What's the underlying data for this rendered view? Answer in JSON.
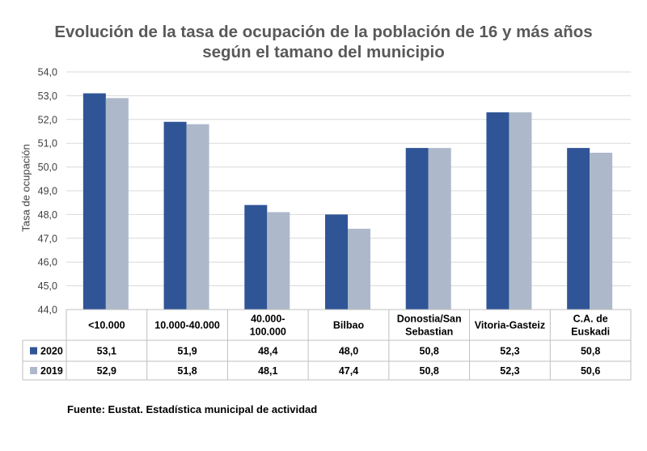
{
  "chart_data": {
    "type": "bar",
    "title": "Evolución de la tasa de ocupación de la población de 16 y más años",
    "subtitle": "según el tamano del municipio",
    "xlabel": "",
    "ylabel": "Tasa de ocupación",
    "ylim": [
      44,
      54
    ],
    "yticks": [
      "44,0",
      "45,0",
      "46,0",
      "47,0",
      "48,0",
      "49,0",
      "50,0",
      "51,0",
      "52,0",
      "53,0",
      "54,0"
    ],
    "categories": [
      [
        "<10.000"
      ],
      [
        "10.000-40.000"
      ],
      [
        "40.000-",
        "100.000"
      ],
      [
        "Bilbao"
      ],
      [
        "Donostia/San",
        "Sebastian"
      ],
      [
        "Vitoria-Gasteiz"
      ],
      [
        "C.A. de",
        "Euskadi"
      ]
    ],
    "series": [
      {
        "name": "2020",
        "color": "#2f5597",
        "values": [
          53.1,
          51.9,
          48.4,
          48.0,
          50.8,
          52.3,
          50.8
        ],
        "labels": [
          "53,1",
          "51,9",
          "48,4",
          "48,0",
          "50,8",
          "52,3",
          "50,8"
        ]
      },
      {
        "name": "2019",
        "color": "#adb9ca",
        "values": [
          52.9,
          51.8,
          48.1,
          47.4,
          50.8,
          52.3,
          50.6
        ],
        "labels": [
          "52,9",
          "51,8",
          "48,1",
          "47,4",
          "50,8",
          "52,3",
          "50,6"
        ]
      }
    ],
    "legend": "data-table"
  },
  "source": "Fuente: Eustat. Estadística municipal de actividad"
}
